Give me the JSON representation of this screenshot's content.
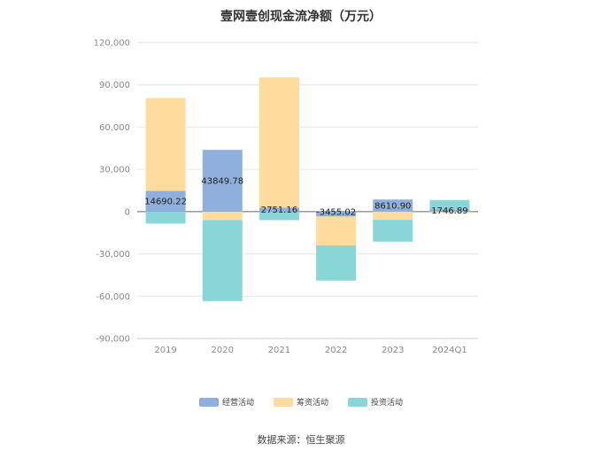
{
  "chart_data": {
    "type": "bar",
    "stacked": true,
    "title": "壹网壹创现金流净额（万元）",
    "categories": [
      "2019",
      "2020",
      "2021",
      "2022",
      "2023",
      "2024Q1"
    ],
    "series": [
      {
        "name": "经营活动",
        "color": "#8fb0dc",
        "values": [
          14690.22,
          43849.78,
          2751.16,
          -3455.02,
          8610.9,
          1746.89
        ]
      },
      {
        "name": "筹资活动",
        "color": "#ffdb9d",
        "values": [
          66000,
          -6000,
          92500,
          -20500,
          -5800,
          -1100
        ]
      },
      {
        "name": "投资活动",
        "color": "#89d6d9",
        "values": [
          -8500,
          -57500,
          -6000,
          -25000,
          -15500,
          6500
        ]
      }
    ],
    "data_labels": [
      "14690.22",
      "43849.78",
      "2751.16",
      "-3455.02",
      "8610.90",
      "1746.89"
    ],
    "ylim": [
      -90000,
      120000
    ],
    "yticks": [
      120000,
      90000,
      60000,
      30000,
      0,
      -30000,
      -60000,
      -90000
    ],
    "ytick_labels": [
      "120,000",
      "90,000",
      "60,000",
      "30,000",
      "0",
      "-30,000",
      "-60,000",
      "-90,000"
    ],
    "grid": true,
    "legend_position": "bottom-center",
    "source": "数据来源：恒生聚源"
  }
}
